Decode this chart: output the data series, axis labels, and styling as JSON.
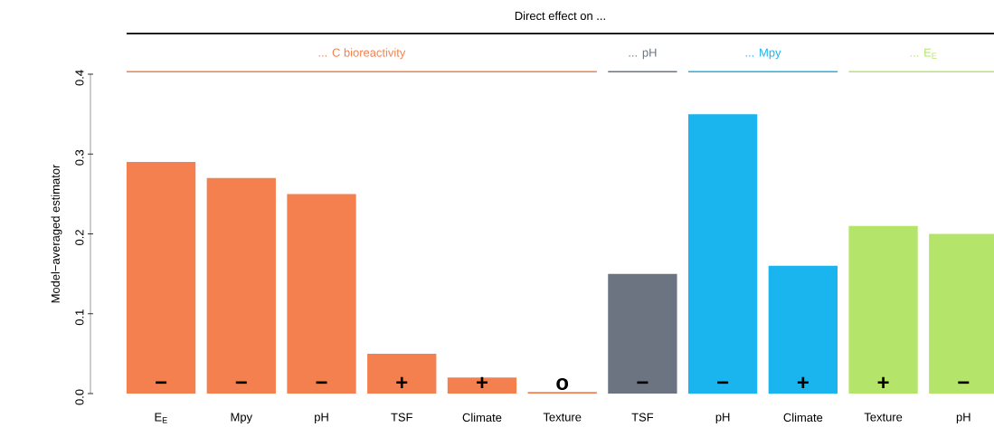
{
  "chart_data": {
    "type": "bar",
    "title": "Direct effect on ...",
    "ylabel": "Model−averaged estimator",
    "categories": [
      "E$_{E}$",
      "Mpy",
      "pH",
      "TSF",
      "Climate",
      "Texture",
      "TSF",
      "pH",
      "Climate",
      "Texture",
      "pH"
    ],
    "ylim": [
      0,
      0.4
    ],
    "yticks": [
      {
        "value": 0,
        "label": "0.0"
      },
      0.1,
      0.2,
      0.3,
      0.4
    ],
    "series": [
      {
        "name": "... C bioreactivity",
        "color": "#f4804f",
        "values": [
          0.29,
          0.27,
          0.25,
          0.05,
          0.02,
          0.002,
          null,
          null,
          null,
          null,
          null
        ],
        "value_labels": [
          "−",
          "−",
          "−",
          "+",
          "+",
          "o",
          null,
          null,
          null,
          null,
          null
        ]
      },
      {
        "name": "... pH",
        "color": "#6b7480",
        "values": [
          null,
          null,
          null,
          null,
          null,
          null,
          0.15,
          null,
          null,
          null,
          null
        ],
        "value_labels": [
          null,
          null,
          null,
          null,
          null,
          null,
          "−",
          null,
          null,
          null,
          null
        ]
      },
      {
        "name": "... Mpy",
        "color": "#1ab4ee",
        "values": [
          null,
          null,
          null,
          null,
          null,
          null,
          null,
          0.35,
          0.16,
          null,
          null
        ],
        "value_labels": [
          null,
          null,
          null,
          null,
          null,
          null,
          null,
          "−",
          "+",
          null,
          null
        ]
      },
      {
        "name": "... E$_{E}$",
        "color": "#b5e46a",
        "values": [
          null,
          null,
          null,
          null,
          null,
          null,
          null,
          null,
          null,
          0.21,
          0.2
        ],
        "value_labels": [
          null,
          null,
          null,
          null,
          null,
          null,
          null,
          null,
          null,
          "+",
          "−"
        ]
      }
    ]
  }
}
